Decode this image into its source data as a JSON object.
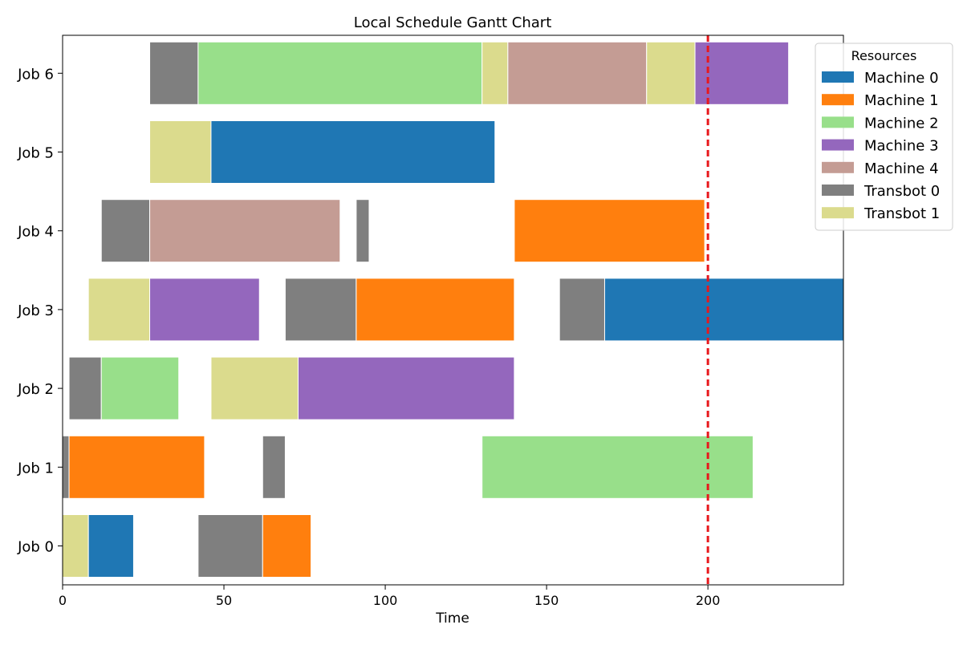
{
  "chart_data": {
    "type": "gantt",
    "title": "Local Schedule Gantt Chart",
    "xlabel": "Time",
    "ylabel": "",
    "xlim": [
      0,
      242
    ],
    "xticks": [
      0,
      50,
      100,
      150,
      200
    ],
    "grid": false,
    "categories": [
      "Job 0",
      "Job 1",
      "Job 2",
      "Job 3",
      "Job 4",
      "Job 5",
      "Job 6"
    ],
    "reference_line": {
      "x": 200,
      "style": "dashed",
      "color": "#e8181c"
    },
    "legend": {
      "title": "Resources",
      "placement": "top-right outside",
      "entries": [
        {
          "name": "Machine 0",
          "color": "#1f77b4"
        },
        {
          "name": "Machine 1",
          "color": "#ff7f0e"
        },
        {
          "name": "Machine 2",
          "color": "#98df8a"
        },
        {
          "name": "Machine 3",
          "color": "#9467bd"
        },
        {
          "name": "Machine 4",
          "color": "#c49c94"
        },
        {
          "name": "Transbot 0",
          "color": "#7f7f7f"
        },
        {
          "name": "Transbot 1",
          "color": "#dbdb8d"
        }
      ]
    },
    "tasks": [
      {
        "job": "Job 0",
        "resource": "Transbot 1",
        "start": 0,
        "end": 8
      },
      {
        "job": "Job 0",
        "resource": "Machine 0",
        "start": 8,
        "end": 22
      },
      {
        "job": "Job 0",
        "resource": "Transbot 0",
        "start": 42,
        "end": 62
      },
      {
        "job": "Job 0",
        "resource": "Machine 1",
        "start": 62,
        "end": 77
      },
      {
        "job": "Job 1",
        "resource": "Transbot 0",
        "start": 0,
        "end": 2
      },
      {
        "job": "Job 1",
        "resource": "Machine 1",
        "start": 2,
        "end": 44
      },
      {
        "job": "Job 1",
        "resource": "Transbot 0",
        "start": 62,
        "end": 69
      },
      {
        "job": "Job 1",
        "resource": "Machine 2",
        "start": 130,
        "end": 214
      },
      {
        "job": "Job 2",
        "resource": "Transbot 0",
        "start": 2,
        "end": 12
      },
      {
        "job": "Job 2",
        "resource": "Machine 2",
        "start": 12,
        "end": 36
      },
      {
        "job": "Job 2",
        "resource": "Transbot 1",
        "start": 46,
        "end": 73
      },
      {
        "job": "Job 2",
        "resource": "Machine 3",
        "start": 73,
        "end": 140
      },
      {
        "job": "Job 3",
        "resource": "Transbot 1",
        "start": 8,
        "end": 27
      },
      {
        "job": "Job 3",
        "resource": "Machine 3",
        "start": 27,
        "end": 61
      },
      {
        "job": "Job 3",
        "resource": "Transbot 0",
        "start": 69,
        "end": 91
      },
      {
        "job": "Job 3",
        "resource": "Machine 1",
        "start": 91,
        "end": 140
      },
      {
        "job": "Job 3",
        "resource": "Transbot 0",
        "start": 154,
        "end": 168
      },
      {
        "job": "Job 3",
        "resource": "Machine 0",
        "start": 168,
        "end": 242
      },
      {
        "job": "Job 4",
        "resource": "Transbot 0",
        "start": 12,
        "end": 27
      },
      {
        "job": "Job 4",
        "resource": "Machine 4",
        "start": 27,
        "end": 86
      },
      {
        "job": "Job 4",
        "resource": "Transbot 0",
        "start": 91,
        "end": 95
      },
      {
        "job": "Job 4",
        "resource": "Machine 1",
        "start": 140,
        "end": 199
      },
      {
        "job": "Job 5",
        "resource": "Transbot 1",
        "start": 27,
        "end": 46
      },
      {
        "job": "Job 5",
        "resource": "Machine 0",
        "start": 46,
        "end": 134
      },
      {
        "job": "Job 6",
        "resource": "Transbot 0",
        "start": 27,
        "end": 42
      },
      {
        "job": "Job 6",
        "resource": "Machine 2",
        "start": 42,
        "end": 130
      },
      {
        "job": "Job 6",
        "resource": "Transbot 1",
        "start": 130,
        "end": 138
      },
      {
        "job": "Job 6",
        "resource": "Machine 4",
        "start": 138,
        "end": 181
      },
      {
        "job": "Job 6",
        "resource": "Transbot 1",
        "start": 181,
        "end": 196
      },
      {
        "job": "Job 6",
        "resource": "Machine 3",
        "start": 196,
        "end": 225
      }
    ]
  }
}
